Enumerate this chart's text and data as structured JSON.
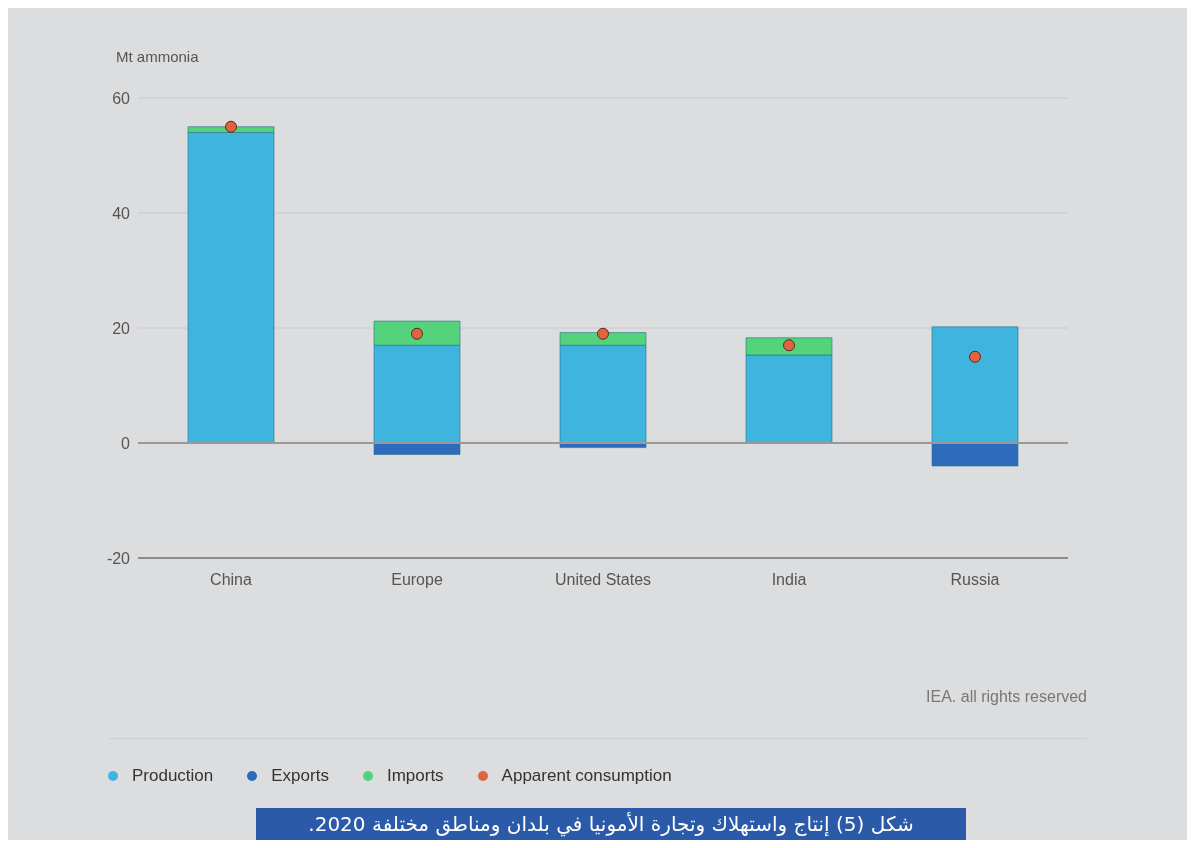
{
  "chart_data": {
    "type": "bar",
    "title": "شكل (5) إنتاج واستهلاك وتجارة الأمونيا في بلدان ومناطق مختلفة 2020.",
    "ylabel": "Mt ammonia",
    "annotations": [
      "IEA. all rights reserved"
    ],
    "categories": [
      "China",
      "Europe",
      "United States",
      "India",
      "Russia"
    ],
    "stacked": true,
    "series": [
      {
        "name": "Production",
        "color": "#3eb4df",
        "values": [
          54,
          17,
          17,
          15.3,
          20.2
        ]
      },
      {
        "name": "Exports",
        "color": "#2f6bbd",
        "values": [
          0,
          -2,
          -0.8,
          0,
          -4
        ]
      },
      {
        "name": "Imports",
        "color": "#55d27c",
        "values": [
          1,
          4.2,
          2.2,
          3,
          0
        ]
      },
      {
        "name": "Apparent consumption",
        "type": "scatter",
        "color": "#e0643f",
        "values": [
          55,
          19,
          19,
          17,
          15
        ]
      }
    ],
    "ylim": [
      -20,
      60
    ],
    "yticks": [
      -20,
      0,
      20,
      40,
      60
    ],
    "grid": "y",
    "legend": "bottom",
    "marker": "circle",
    "ref_lines": [
      {
        "axis": "y",
        "value": 0,
        "color": "#999999"
      }
    ]
  }
}
